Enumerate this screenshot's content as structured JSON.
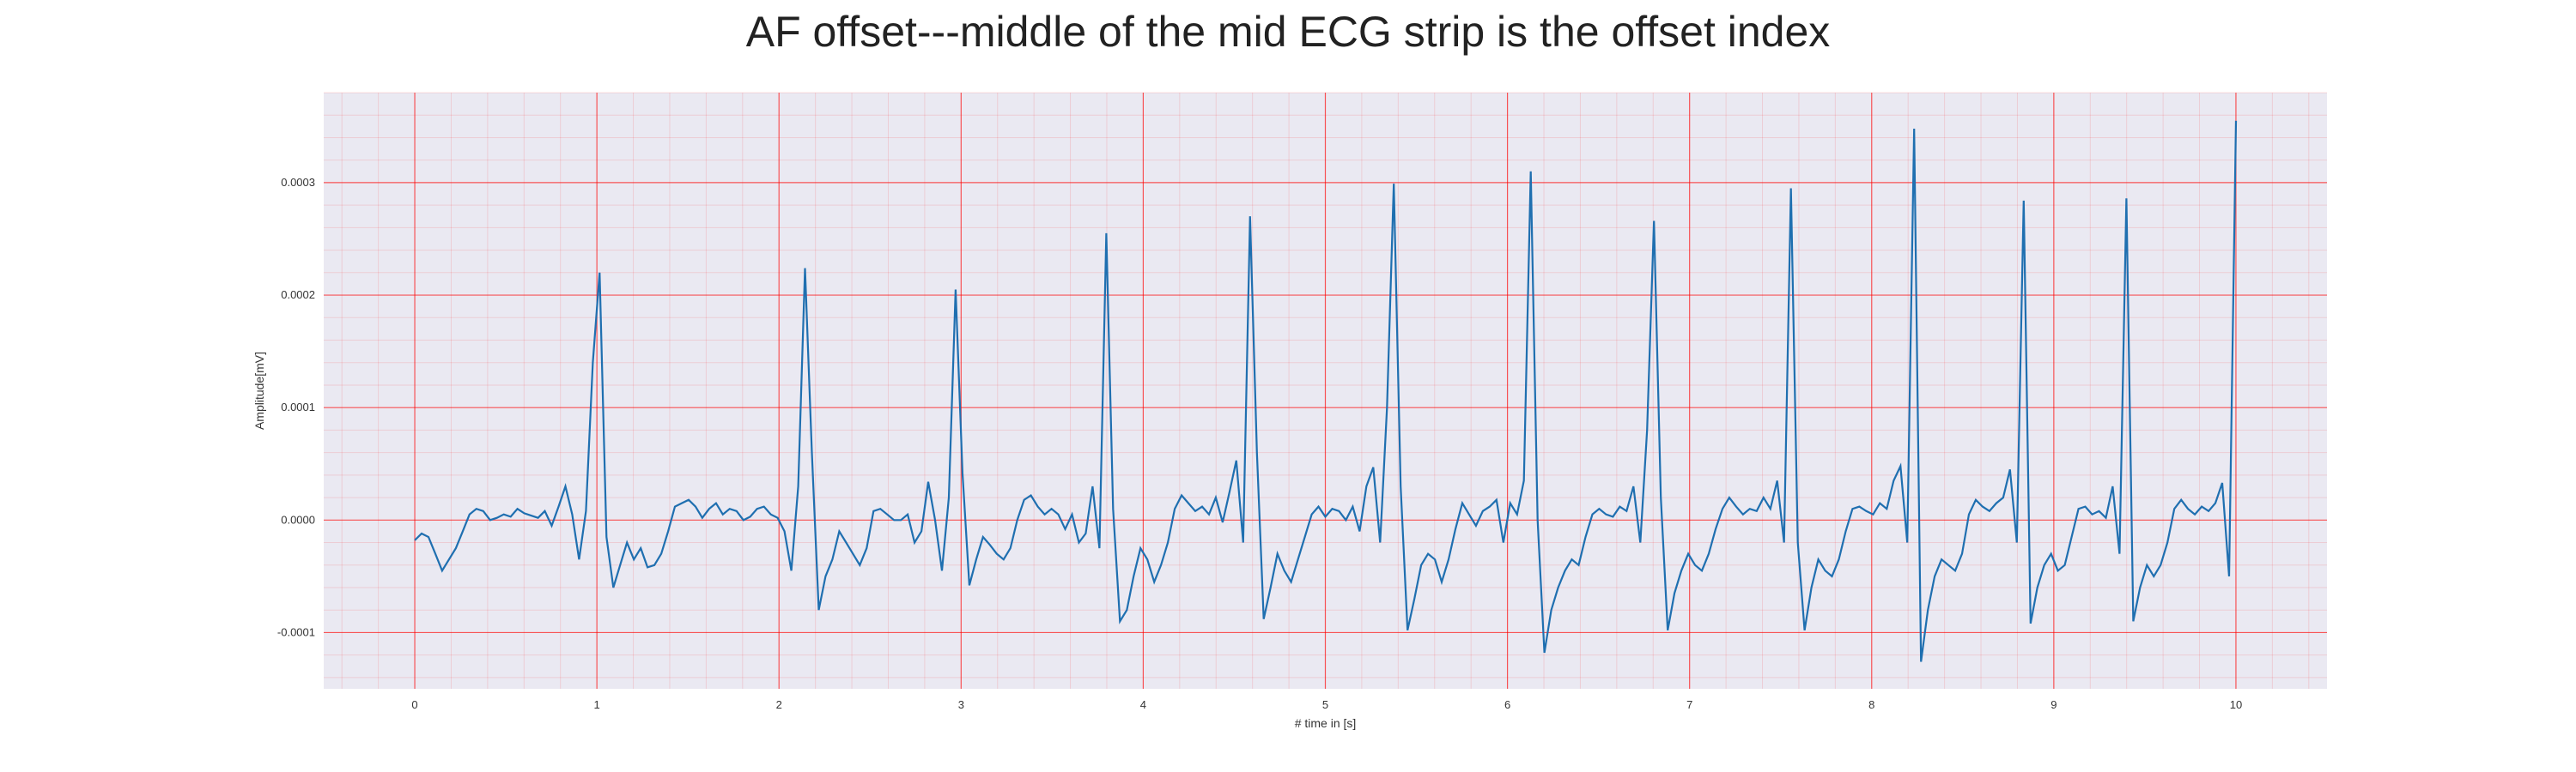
{
  "chart_data": {
    "type": "line",
    "title": "AF offset---middle of the mid ECG strip is the offset index",
    "xlabel": "# time in [s]",
    "ylabel": "Amplitude[mV]",
    "xlim": [
      -0.5,
      10.5
    ],
    "ylim": [
      -0.00015,
      0.00038
    ],
    "x_ticks": [
      0,
      1,
      2,
      3,
      4,
      5,
      6,
      7,
      8,
      9,
      10
    ],
    "y_ticks": [
      -0.0001,
      0.0,
      0.0001,
      0.0002,
      0.0003
    ],
    "x_tick_labels": [
      "0",
      "1",
      "2",
      "3",
      "4",
      "5",
      "6",
      "7",
      "8",
      "9",
      "10"
    ],
    "y_tick_labels": [
      "-0.0001",
      "0.0000",
      "0.0001",
      "0.0002",
      "0.0003"
    ],
    "grid": true,
    "minor_grid": true,
    "grid_color": "#ff0000",
    "background_color": "#eae9f2",
    "line_color": "#1f6fb0",
    "sample_rate_hz": 100,
    "series": [
      {
        "values": [
          -1.8e-05,
          -1.2e-05,
          -1.5e-05,
          -3e-05,
          -4.5e-05,
          -3.5e-05,
          -2.5e-05,
          -1e-05,
          5e-06,
          1e-05,
          8e-06,
          0.0,
          2e-06,
          5e-06,
          3e-06,
          1e-05,
          6e-06,
          4e-06,
          2e-06,
          8e-06,
          -5e-06,
          1.2e-05,
          3e-05,
          5e-06,
          -3.5e-05,
          8e-06,
          0.00014,
          0.00022,
          -1.5e-05,
          -6e-05,
          -4e-05,
          -2e-05,
          -3.5e-05,
          -2.5e-05,
          -4.2e-05,
          -4e-05,
          -3e-05,
          -1e-05,
          1.2e-05,
          1.5e-05,
          1.8e-05,
          1.2e-05,
          2e-06,
          1e-05,
          1.5e-05,
          5e-06,
          1e-05,
          8e-06,
          0.0,
          3e-06,
          1e-05,
          1.2e-05,
          5e-06,
          2e-06,
          -1e-05,
          -4.5e-05,
          3e-05,
          0.000224,
          6e-05,
          -8e-05,
          -5e-05,
          -3.5e-05,
          -1e-05,
          -2e-05,
          -3e-05,
          -4e-05,
          -2.5e-05,
          8e-06,
          1e-05,
          5e-06,
          0.0,
          0.0,
          5e-06,
          -2e-05,
          -1e-05,
          3.4e-05,
          0.0,
          -4.5e-05,
          2e-05,
          0.000205,
          4.2e-05,
          -5.8e-05,
          -3.5e-05,
          -1.5e-05,
          -2.2e-05,
          -3e-05,
          -3.5e-05,
          -2.5e-05,
          0.0,
          1.8e-05,
          2.2e-05,
          1.2e-05,
          5e-06,
          1e-05,
          5e-06,
          -8e-06,
          5e-06,
          -2e-05,
          -1.2e-05,
          3e-05,
          -2.5e-05,
          0.000255,
          1e-05,
          -9e-05,
          -8e-05,
          -5e-05,
          -2.5e-05,
          -3.5e-05,
          -5.5e-05,
          -4e-05,
          -2e-05,
          1e-05,
          2.2e-05,
          1.5e-05,
          8e-06,
          1.2e-05,
          5e-06,
          2e-05,
          -2e-06,
          2.5e-05,
          5.3e-05,
          -2e-05,
          0.00027,
          6e-05,
          -8.8e-05,
          -6e-05,
          -3e-05,
          -4.5e-05,
          -5.5e-05,
          -3.5e-05,
          -1.5e-05,
          5e-06,
          1.2e-05,
          3e-06,
          1e-05,
          8e-06,
          0.0,
          1.2e-05,
          -1e-05,
          3e-05,
          4.7e-05,
          -2e-05,
          0.0001,
          0.000299,
          3e-05,
          -9.8e-05,
          -7e-05,
          -4e-05,
          -3e-05,
          -3.5e-05,
          -5.5e-05,
          -3.5e-05,
          -8e-06,
          1.5e-05,
          5e-06,
          -5e-06,
          8e-06,
          1.2e-05,
          1.8e-05,
          -2e-05,
          1.5e-05,
          5e-06,
          3.5e-05,
          0.00031,
          0.0,
          -0.000118,
          -8e-05,
          -6e-05,
          -4.5e-05,
          -3.5e-05,
          -4e-05,
          -1.5e-05,
          5e-06,
          1e-05,
          5e-06,
          3e-06,
          1.2e-05,
          8e-06,
          3e-05,
          -2e-05,
          8e-05,
          0.000266,
          2e-05,
          -9.8e-05,
          -6.5e-05,
          -4.5e-05,
          -3e-05,
          -4e-05,
          -4.5e-05,
          -3e-05,
          -8e-06,
          1e-05,
          2e-05,
          1.2e-05,
          5e-06,
          1e-05,
          8e-06,
          2e-05,
          1e-05,
          3.5e-05,
          -2e-05,
          0.000295,
          -2e-05,
          -9.8e-05,
          -6e-05,
          -3.5e-05,
          -4.5e-05,
          -5e-05,
          -3.5e-05,
          -1e-05,
          1e-05,
          1.2e-05,
          8e-06,
          5e-06,
          1.5e-05,
          1e-05,
          3.5e-05,
          4.8e-05,
          -2e-05,
          0.000348,
          -0.000126,
          -8e-05,
          -5e-05,
          -3.5e-05,
          -4e-05,
          -4.5e-05,
          -3e-05,
          5e-06,
          1.8e-05,
          1.2e-05,
          8e-06,
          1.5e-05,
          2e-05,
          4.5e-05,
          -2e-05,
          0.000284,
          -9.2e-05,
          -6e-05,
          -4e-05,
          -3e-05,
          -4.5e-05,
          -4e-05,
          -1.5e-05,
          1e-05,
          1.2e-05,
          5e-06,
          8e-06,
          2e-06,
          3e-05,
          -3e-05,
          0.000286,
          -9e-05,
          -6e-05,
          -4e-05,
          -5e-05,
          -4e-05,
          -2e-05,
          1e-05,
          1.8e-05,
          1e-05,
          5e-06,
          1.2e-05,
          8e-06,
          1.5e-05,
          3.3e-05,
          -5e-05,
          0.000355
        ]
      }
    ]
  }
}
